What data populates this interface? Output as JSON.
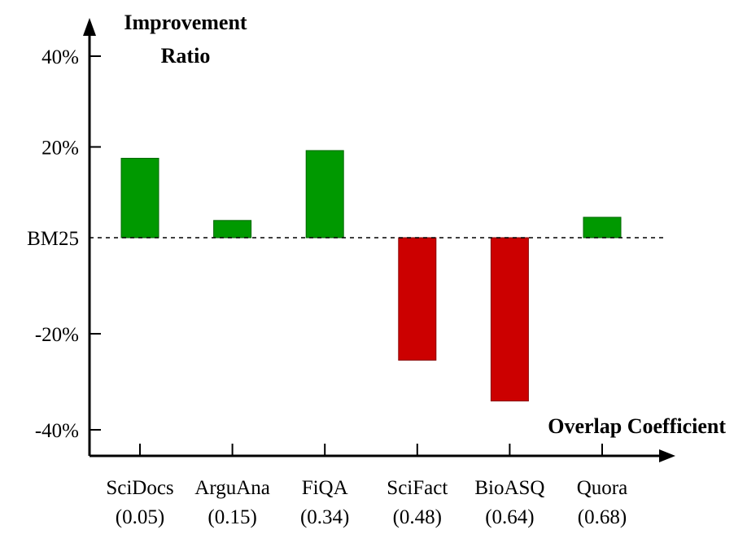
{
  "chart_data": {
    "type": "bar",
    "title": "",
    "ylabel": "Improvement Ratio",
    "ylabel_lines": [
      "Improvement",
      "Ratio"
    ],
    "xlabel": "Overlap Coefficient",
    "ylim": [
      -44,
      44
    ],
    "yticks": [
      {
        "value": 40,
        "label": "40%"
      },
      {
        "value": 20,
        "label": "20%"
      },
      {
        "value": 0,
        "label": "BM25"
      },
      {
        "value": -20,
        "label": "-20%"
      },
      {
        "value": -40,
        "label": "-40%"
      }
    ],
    "baseline": {
      "value": 0,
      "label": "BM25",
      "style": "dashed"
    },
    "categories": [
      {
        "name": "SciDocs",
        "coef": "(0.05)"
      },
      {
        "name": "ArguAna",
        "coef": "(0.15)"
      },
      {
        "name": "FiQA",
        "coef": "(0.34)"
      },
      {
        "name": "SciFact",
        "coef": "(0.48)"
      },
      {
        "name": "BioASQ",
        "coef": "(0.64)"
      },
      {
        "name": "Quora",
        "coef": "(0.68)"
      }
    ],
    "values": [
      17.5,
      3.8,
      19.2,
      -25.5,
      -34.0,
      4.5
    ],
    "colors": {
      "positive": "#009900",
      "negative": "#cc0000",
      "positive_stroke": "#006600",
      "negative_stroke": "#880000"
    }
  }
}
